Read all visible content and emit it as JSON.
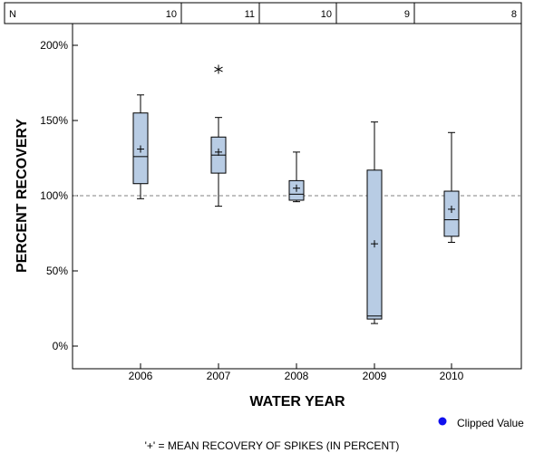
{
  "chart_data": {
    "type": "boxplot",
    "n_label": "N",
    "ylabel": "PERCENT RECOVERY",
    "xlabel": "WATER YEAR",
    "ylim": [
      -15,
      215
    ],
    "yticks": [
      0,
      50,
      100,
      150,
      200
    ],
    "ytick_labels": [
      "0%",
      "50%",
      "100%",
      "150%",
      "200%"
    ],
    "reference_line": 100,
    "categories": [
      "2006",
      "2007",
      "2008",
      "2009",
      "2010"
    ],
    "n_values": [
      "10",
      "11",
      "10",
      "9",
      "8"
    ],
    "boxes": [
      {
        "year": "2006",
        "whisker_low": 98,
        "q1": 108,
        "median": 126,
        "q3": 155,
        "whisker_high": 167,
        "mean": 131,
        "outliers": []
      },
      {
        "year": "2007",
        "whisker_low": 93,
        "q1": 115,
        "median": 127,
        "q3": 139,
        "whisker_high": 152,
        "mean": 129,
        "outliers": [
          184
        ]
      },
      {
        "year": "2008",
        "whisker_low": 96,
        "q1": 97,
        "median": 101,
        "q3": 110,
        "whisker_high": 129,
        "mean": 105,
        "outliers": []
      },
      {
        "year": "2009",
        "whisker_low": 15,
        "q1": 18,
        "median": 20,
        "q3": 117,
        "whisker_high": 149,
        "mean": 68,
        "outliers": []
      },
      {
        "year": "2010",
        "whisker_low": 69,
        "q1": 73,
        "median": 84,
        "q3": 103,
        "whisker_high": 142,
        "mean": 91,
        "outliers": []
      }
    ],
    "legend": {
      "label": "Clipped Value",
      "color": "#1010ee"
    },
    "footnote": "'+' = MEAN RECOVERY OF SPIKES (IN PERCENT)",
    "colors": {
      "box_fill": "#b8cce4",
      "line": "#000000",
      "reference": "#808080"
    }
  }
}
